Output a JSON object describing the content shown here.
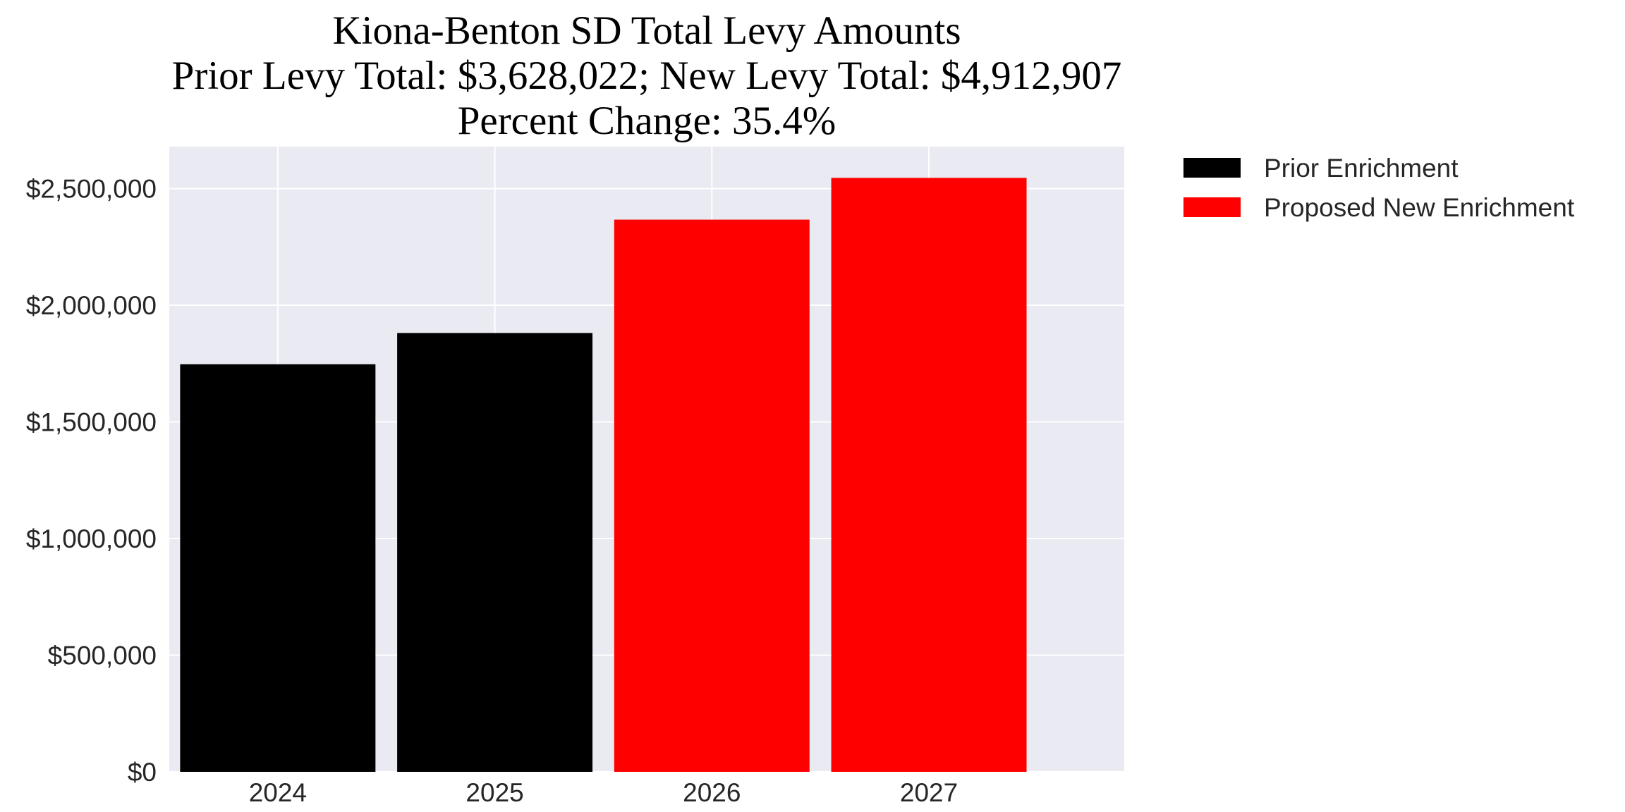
{
  "chart_data": {
    "type": "bar",
    "title_lines": [
      "Kiona-Benton SD Total Levy Amounts",
      "Prior Levy Total:  $3,628,022; New Levy Total: $4,912,907",
      "Percent Change: 35.4%"
    ],
    "xlabel": "",
    "ylabel": "",
    "categories": [
      "2024",
      "2025",
      "2026",
      "2027"
    ],
    "values": [
      1747000,
      1881000,
      2367000,
      2546000
    ],
    "bar_groups": [
      "prior",
      "prior",
      "new",
      "new"
    ],
    "ylim": [
      0,
      2680000
    ],
    "y_ticks": [
      0,
      500000,
      1000000,
      1500000,
      2000000,
      2500000
    ],
    "y_tick_labels": [
      "$0",
      "$500,000",
      "$1,000,000",
      "$1,500,000",
      "$2,000,000",
      "$2,500,000"
    ],
    "grid": true,
    "legend_position": "outside-upper-right",
    "legend": [
      {
        "key": "prior",
        "label": "Prior Enrichment",
        "color": "#000000"
      },
      {
        "key": "new",
        "label": "Proposed New Enrichment",
        "color": "#ff0000"
      }
    ],
    "colors": {
      "plot_background": "#eaeaf2",
      "grid": "#ffffff",
      "prior": "#000000",
      "new": "#ff0000"
    }
  }
}
